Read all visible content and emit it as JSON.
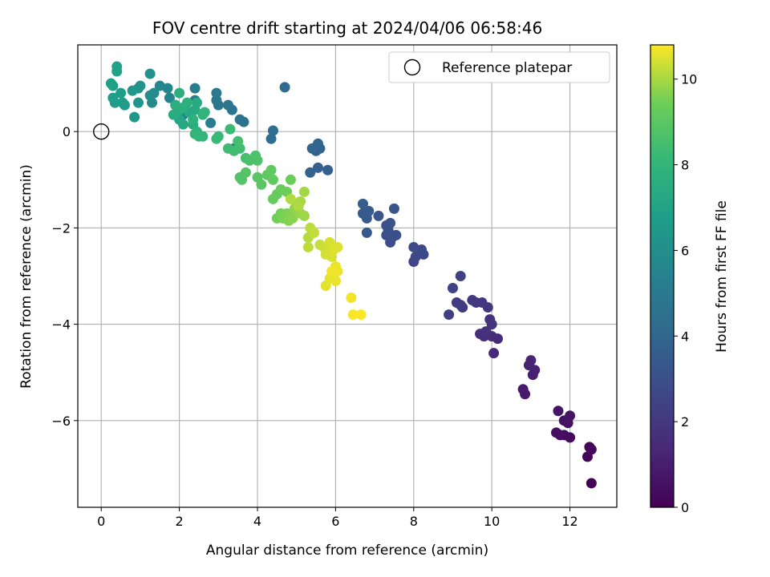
{
  "chart_data": {
    "type": "scatter",
    "title": "FOV centre drift starting at 2024/04/06 06:58:46",
    "xlabel": "Angular distance from reference (arcmin)",
    "ylabel": "Rotation from reference (arcmin)",
    "colorbar_label": "Hours from first FF file",
    "xlim": [
      -0.6,
      13.2
    ],
    "ylim": [
      -7.8,
      1.8
    ],
    "clim": [
      0,
      10.8
    ],
    "xticks": [
      0,
      2,
      4,
      6,
      8,
      10,
      12
    ],
    "yticks": [
      -6,
      -4,
      -2,
      0
    ],
    "cticks": [
      0,
      2,
      4,
      6,
      8,
      10
    ],
    "grid": true,
    "colormap": "viridis",
    "legend": {
      "position": "top-right",
      "entries": [
        {
          "label": "Reference platepar",
          "marker": "open-circle"
        }
      ]
    },
    "reference": {
      "x": 0,
      "y": 0
    },
    "points": [
      [
        12.55,
        -7.3,
        0.05
      ],
      [
        12.45,
        -6.75,
        0.15
      ],
      [
        12.5,
        -6.55,
        0.2
      ],
      [
        12.55,
        -6.6,
        0.25
      ],
      [
        12.0,
        -6.35,
        0.35
      ],
      [
        11.85,
        -6.3,
        0.4
      ],
      [
        11.75,
        -6.3,
        0.45
      ],
      [
        11.65,
        -6.25,
        0.5
      ],
      [
        11.95,
        -6.05,
        0.55
      ],
      [
        11.85,
        -6.0,
        0.6
      ],
      [
        12.0,
        -5.9,
        0.65
      ],
      [
        11.7,
        -5.8,
        0.7
      ],
      [
        10.85,
        -5.45,
        0.85
      ],
      [
        10.8,
        -5.35,
        0.9
      ],
      [
        11.05,
        -5.05,
        1.05
      ],
      [
        11.1,
        -4.95,
        1.1
      ],
      [
        10.95,
        -4.85,
        1.15
      ],
      [
        11.0,
        -4.75,
        1.2
      ],
      [
        10.05,
        -4.6,
        1.35
      ],
      [
        10.15,
        -4.3,
        1.45
      ],
      [
        10.0,
        -4.25,
        1.5
      ],
      [
        9.8,
        -4.25,
        1.6
      ],
      [
        9.7,
        -4.2,
        1.65
      ],
      [
        9.85,
        -4.15,
        1.7
      ],
      [
        10.0,
        -4.0,
        1.75
      ],
      [
        9.95,
        -3.9,
        1.8
      ],
      [
        9.9,
        -3.65,
        1.9
      ],
      [
        9.75,
        -3.55,
        1.95
      ],
      [
        9.6,
        -3.55,
        2.0
      ],
      [
        9.5,
        -3.5,
        2.05
      ],
      [
        9.25,
        -3.65,
        2.1
      ],
      [
        9.2,
        -3.6,
        2.15
      ],
      [
        9.1,
        -3.55,
        2.2
      ],
      [
        8.9,
        -3.8,
        2.25
      ],
      [
        9.2,
        -3.0,
        2.35
      ],
      [
        9.0,
        -3.25,
        2.4
      ],
      [
        8.0,
        -2.7,
        2.55
      ],
      [
        8.05,
        -2.6,
        2.6
      ],
      [
        8.25,
        -2.55,
        2.65
      ],
      [
        8.2,
        -2.45,
        2.7
      ],
      [
        8.0,
        -2.4,
        2.75
      ],
      [
        7.4,
        -2.3,
        2.85
      ],
      [
        7.3,
        -2.15,
        2.9
      ],
      [
        7.45,
        -2.2,
        2.95
      ],
      [
        7.55,
        -2.15,
        3.0
      ],
      [
        7.35,
        -2.05,
        3.05
      ],
      [
        7.3,
        -1.95,
        3.1
      ],
      [
        7.4,
        -1.9,
        3.15
      ],
      [
        7.1,
        -1.75,
        3.2
      ],
      [
        7.5,
        -1.6,
        3.25
      ],
      [
        6.8,
        -2.1,
        3.35
      ],
      [
        6.8,
        -1.8,
        3.4
      ],
      [
        6.7,
        -1.7,
        3.45
      ],
      [
        6.85,
        -1.65,
        3.5
      ],
      [
        6.7,
        -1.5,
        3.55
      ],
      [
        5.8,
        -0.8,
        3.7
      ],
      [
        5.55,
        -0.75,
        3.75
      ],
      [
        5.35,
        -0.85,
        3.8
      ],
      [
        5.5,
        -0.4,
        3.85
      ],
      [
        5.6,
        -0.35,
        3.9
      ],
      [
        5.4,
        -0.35,
        3.95
      ],
      [
        5.55,
        -0.25,
        4.0
      ],
      [
        4.7,
        0.92,
        4.15
      ],
      [
        4.35,
        -0.15,
        4.3
      ],
      [
        4.4,
        0.02,
        4.35
      ],
      [
        3.65,
        0.2,
        4.5
      ],
      [
        3.55,
        0.25,
        4.55
      ],
      [
        3.4,
        -0.35,
        4.6
      ],
      [
        3.35,
        0.45,
        4.65
      ],
      [
        3.25,
        0.55,
        4.7
      ],
      [
        3.0,
        0.55,
        4.85
      ],
      [
        2.95,
        0.65,
        4.9
      ],
      [
        2.95,
        0.8,
        4.95
      ],
      [
        2.4,
        0.65,
        5.05
      ],
      [
        2.4,
        0.9,
        5.1
      ],
      [
        2.8,
        0.18,
        5.2
      ],
      [
        2.1,
        0.35,
        5.3
      ],
      [
        1.9,
        0.55,
        5.45
      ],
      [
        1.75,
        0.7,
        5.55
      ],
      [
        1.7,
        0.9,
        5.6
      ],
      [
        1.5,
        0.95,
        5.65
      ],
      [
        1.3,
        0.6,
        5.8
      ],
      [
        1.35,
        0.8,
        5.9
      ],
      [
        1.25,
        0.75,
        6.0
      ],
      [
        1.25,
        1.2,
        6.1
      ],
      [
        0.95,
        0.9,
        6.2
      ],
      [
        1.0,
        0.95,
        6.25
      ],
      [
        0.95,
        0.6,
        6.3
      ],
      [
        0.85,
        0.3,
        6.4
      ],
      [
        0.8,
        0.85,
        6.45
      ],
      [
        0.6,
        0.55,
        6.55
      ],
      [
        0.55,
        0.6,
        6.6
      ],
      [
        0.5,
        0.8,
        6.65
      ],
      [
        0.35,
        0.6,
        6.7
      ],
      [
        0.3,
        0.7,
        6.75
      ],
      [
        0.3,
        0.95,
        6.8
      ],
      [
        0.25,
        1.0,
        6.85
      ],
      [
        0.4,
        1.25,
        6.95
      ],
      [
        0.4,
        1.35,
        7.0
      ],
      [
        2.0,
        0.25,
        7.2
      ],
      [
        2.1,
        0.15,
        7.25
      ],
      [
        2.25,
        0.4,
        7.3
      ],
      [
        2.4,
        0.45,
        7.35
      ],
      [
        2.45,
        0.6,
        7.4
      ],
      [
        2.35,
        0.15,
        7.45
      ],
      [
        1.85,
        0.35,
        7.5
      ],
      [
        2.0,
        0.45,
        7.55
      ],
      [
        1.9,
        0.55,
        7.6
      ],
      [
        2.0,
        0.8,
        7.62
      ],
      [
        2.2,
        0.6,
        7.65
      ],
      [
        2.1,
        0.5,
        7.7
      ],
      [
        2.35,
        0.25,
        7.75
      ],
      [
        2.45,
        0.0,
        7.8
      ],
      [
        2.6,
        0.35,
        7.85
      ],
      [
        2.65,
        0.4,
        7.9
      ],
      [
        2.6,
        -0.1,
        7.95
      ],
      [
        2.4,
        -0.05,
        8.0
      ],
      [
        2.5,
        -0.1,
        8.05
      ],
      [
        3.0,
        -0.1,
        8.15
      ],
      [
        2.95,
        -0.15,
        8.2
      ],
      [
        3.3,
        0.05,
        8.25
      ],
      [
        3.25,
        -0.35,
        8.3
      ],
      [
        3.4,
        -0.4,
        8.35
      ],
      [
        3.55,
        -0.35,
        8.4
      ],
      [
        3.5,
        -0.2,
        8.45
      ],
      [
        3.7,
        -0.55,
        8.55
      ],
      [
        3.8,
        -0.6,
        8.6
      ],
      [
        3.95,
        -0.5,
        8.65
      ],
      [
        4.0,
        -0.6,
        8.7
      ],
      [
        3.55,
        -0.95,
        8.75
      ],
      [
        3.6,
        -1.0,
        8.8
      ],
      [
        3.7,
        -0.85,
        8.85
      ],
      [
        4.0,
        -0.95,
        8.95
      ],
      [
        4.1,
        -1.1,
        9.0
      ],
      [
        4.25,
        -0.9,
        9.05
      ],
      [
        4.35,
        -0.8,
        9.1
      ],
      [
        4.4,
        -1.0,
        9.15
      ],
      [
        4.5,
        -1.3,
        9.2
      ],
      [
        4.4,
        -1.4,
        9.25
      ],
      [
        4.6,
        -1.2,
        9.3
      ],
      [
        4.85,
        -1.0,
        9.35
      ],
      [
        4.75,
        -1.25,
        9.4
      ],
      [
        4.5,
        -1.8,
        9.45
      ],
      [
        4.6,
        -1.7,
        9.5
      ],
      [
        4.65,
        -1.8,
        9.55
      ],
      [
        4.75,
        -1.7,
        9.6
      ],
      [
        4.8,
        -1.85,
        9.65
      ],
      [
        4.9,
        -1.8,
        9.7
      ],
      [
        4.95,
        -1.6,
        9.75
      ],
      [
        5.0,
        -1.5,
        9.8
      ],
      [
        5.1,
        -1.7,
        9.85
      ],
      [
        5.2,
        -1.75,
        9.9
      ],
      [
        5.2,
        -1.25,
        9.95
      ],
      [
        5.1,
        -1.45,
        10.0
      ],
      [
        5.05,
        -1.55,
        10.05
      ],
      [
        4.85,
        -1.4,
        10.08
      ],
      [
        5.3,
        -2.2,
        10.1
      ],
      [
        5.35,
        -2.0,
        10.15
      ],
      [
        5.3,
        -2.4,
        10.2
      ],
      [
        5.45,
        -2.1,
        10.25
      ],
      [
        5.6,
        -2.35,
        10.3
      ],
      [
        5.7,
        -2.4,
        10.35
      ],
      [
        5.75,
        -2.55,
        10.4
      ],
      [
        5.85,
        -2.3,
        10.42
      ],
      [
        5.9,
        -2.6,
        10.45
      ],
      [
        6.05,
        -2.4,
        10.48
      ],
      [
        5.95,
        -2.45,
        10.5
      ],
      [
        5.75,
        -3.2,
        10.55
      ],
      [
        5.85,
        -3.05,
        10.58
      ],
      [
        6.0,
        -3.1,
        10.6
      ],
      [
        6.0,
        -2.8,
        10.62
      ],
      [
        6.05,
        -2.9,
        10.65
      ],
      [
        5.9,
        -2.9,
        10.68
      ],
      [
        6.4,
        -3.45,
        10.7
      ],
      [
        6.45,
        -3.8,
        10.74
      ],
      [
        6.65,
        -3.8,
        10.78
      ]
    ]
  }
}
